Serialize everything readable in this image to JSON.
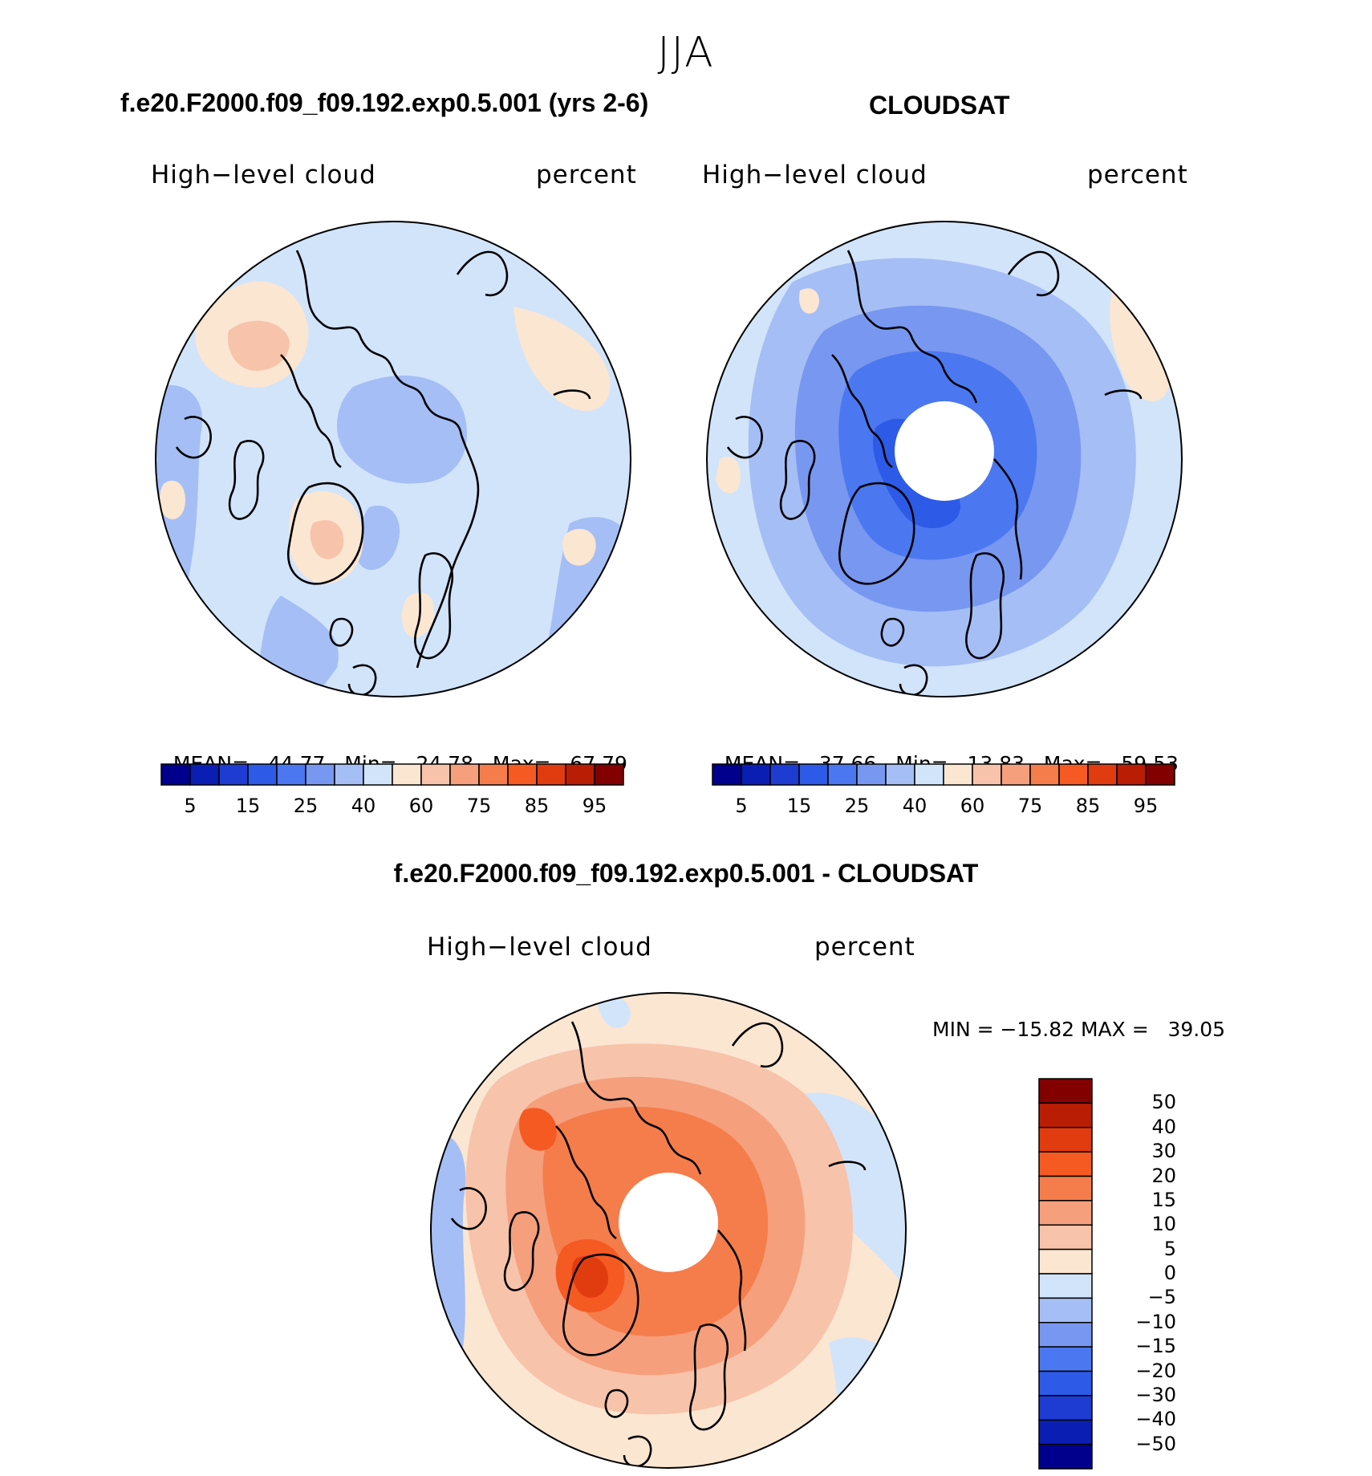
{
  "figure": {
    "season": "JJA"
  },
  "panels": [
    {
      "title": "f.e20.F2000.f09_f09.192.exp0.5.001 (yrs 2-6)",
      "variable_label": "High−level cloud",
      "units_label": "percent",
      "stats": {
        "mean_label": "MEAN=",
        "mean_value": "44.77",
        "min_label": "Min=",
        "min_value": "24.78",
        "max_label": "Max=",
        "max_value": "67.79"
      },
      "polar_hole": false,
      "regions": [
        {
          "name": "siberia-warm",
          "level": 55
        },
        {
          "name": "greenland-warm",
          "level": 55
        },
        {
          "name": "norway-warm",
          "level": 55
        },
        {
          "name": "arctic-ocean-cool",
          "level": 37
        }
      ]
    },
    {
      "title": "CLOUDSAT",
      "variable_label": "High−level cloud",
      "units_label": "percent",
      "stats": {
        "mean_label": "MEAN=",
        "mean_value": "37.66",
        "min_label": "Min=",
        "min_value": "13.83",
        "max_label": "Max=",
        "max_value": "59.53"
      },
      "polar_hole": true,
      "regions": [
        {
          "name": "arctic-basin-low",
          "level": 20
        },
        {
          "name": "greenland-low",
          "level": 22
        },
        {
          "name": "pacific-warm",
          "level": 55
        }
      ]
    }
  ],
  "shared_colorbar": {
    "colors": [
      "#00008c",
      "#0a1eb4",
      "#1e3cd2",
      "#2d5ae6",
      "#4b78f0",
      "#7897f0",
      "#a5bef5",
      "#d2e4fa",
      "#fbe6d2",
      "#f7c3aa",
      "#f59f7d",
      "#f57d4b",
      "#f55a23",
      "#e13c0f",
      "#b91e05",
      "#820000"
    ],
    "tick_labels": [
      "5",
      "15",
      "25",
      "40",
      "60",
      "75",
      "85",
      "95"
    ]
  },
  "difference_panel": {
    "title": "f.e20.F2000.f09_f09.192.exp0.5.001 - CLOUDSAT",
    "variable_label": "High−level cloud",
    "units_label": "percent",
    "minmax_text": "MIN = −15.82 MAX =   39.05",
    "polar_hole": true,
    "colorbar": {
      "colors_top_to_bottom": [
        "#820000",
        "#b91e05",
        "#e13c0f",
        "#f55a23",
        "#f57d4b",
        "#f59f7d",
        "#f7c3aa",
        "#fbe6d2",
        "#d2e4fa",
        "#a5bef5",
        "#7897f0",
        "#4b78f0",
        "#2d5ae6",
        "#1e3cd2",
        "#0a1eb4",
        "#00008c"
      ],
      "tick_labels_top_to_bottom": [
        "50",
        "40",
        "30",
        "20",
        "15",
        "10",
        "5",
        "0",
        "−5",
        "−10",
        "−15",
        "−20",
        "−30",
        "−40",
        "−50"
      ]
    }
  }
}
